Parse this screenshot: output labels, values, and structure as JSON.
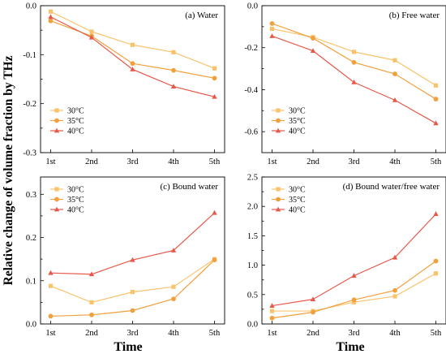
{
  "figure": {
    "ylabel": "Relative change of volume fraction by THz",
    "xlabel": "Time"
  },
  "series_colors": [
    "#f9c36b",
    "#f2a03d",
    "#e8584a"
  ],
  "series_markers": [
    "square",
    "circle",
    "triangle"
  ],
  "chart_data": [
    {
      "type": "line",
      "title": "(a) Water",
      "categories": [
        "1st",
        "2nd",
        "3rd",
        "4th",
        "5th"
      ],
      "ylim": [
        -0.3,
        0.0
      ],
      "yticks": [
        "-0.3",
        "-0.2",
        "-0.1",
        "0.0"
      ],
      "yticks_values": [
        -0.3,
        -0.2,
        -0.1,
        0.0
      ],
      "legend_position": "bottom-left",
      "series": [
        {
          "name": "30°C",
          "values": [
            -0.012,
            -0.053,
            -0.08,
            -0.095,
            -0.128
          ]
        },
        {
          "name": "35°C",
          "values": [
            -0.031,
            -0.062,
            -0.118,
            -0.132,
            -0.148
          ]
        },
        {
          "name": "40°C",
          "values": [
            -0.023,
            -0.065,
            -0.13,
            -0.165,
            -0.186
          ]
        }
      ]
    },
    {
      "type": "line",
      "title": "(b) Free water",
      "categories": [
        "1st",
        "2nd",
        "3rd",
        "4th",
        "5th"
      ],
      "ylim": [
        -0.7,
        0.0
      ],
      "yticks": [
        "-0.6",
        "-0.4",
        "-0.2",
        "0.0"
      ],
      "yticks_values": [
        -0.6,
        -0.4,
        -0.2,
        0.0
      ],
      "legend_position": "bottom-left",
      "series": [
        {
          "name": "30°C",
          "values": [
            -0.11,
            -0.15,
            -0.22,
            -0.26,
            -0.38
          ]
        },
        {
          "name": "35°C",
          "values": [
            -0.085,
            -0.155,
            -0.27,
            -0.325,
            -0.445
          ]
        },
        {
          "name": "40°C",
          "values": [
            -0.145,
            -0.215,
            -0.365,
            -0.45,
            -0.56
          ]
        }
      ]
    },
    {
      "type": "line",
      "title": "(c) Bound water",
      "categories": [
        "1st",
        "2nd",
        "3rd",
        "4th",
        "5th"
      ],
      "ylim": [
        0.0,
        0.34
      ],
      "yticks": [
        "0.0",
        "0.1",
        "0.2",
        "0.3"
      ],
      "yticks_values": [
        0.0,
        0.1,
        0.2,
        0.3
      ],
      "legend_position": "top-left",
      "series": [
        {
          "name": "30°C",
          "values": [
            0.088,
            0.05,
            0.074,
            0.086,
            0.15
          ]
        },
        {
          "name": "35°C",
          "values": [
            0.018,
            0.021,
            0.031,
            0.058,
            0.148
          ]
        },
        {
          "name": "40°C",
          "values": [
            0.118,
            0.115,
            0.148,
            0.17,
            0.257
          ]
        }
      ]
    },
    {
      "type": "line",
      "title": "(d) Bound water/free water",
      "categories": [
        "1st",
        "2nd",
        "3rd",
        "4th",
        "5th"
      ],
      "ylim": [
        0.0,
        2.5
      ],
      "yticks": [
        "0.0",
        "0.5",
        "1.0",
        "1.5",
        "2.0",
        "2.5"
      ],
      "yticks_values": [
        0.0,
        0.5,
        1.0,
        1.5,
        2.0,
        2.5
      ],
      "legend_position": "top-left",
      "series": [
        {
          "name": "30°C",
          "values": [
            0.22,
            0.22,
            0.37,
            0.47,
            0.86
          ]
        },
        {
          "name": "35°C",
          "values": [
            0.1,
            0.2,
            0.41,
            0.57,
            1.07
          ]
        },
        {
          "name": "40°C",
          "values": [
            0.31,
            0.42,
            0.82,
            1.13,
            1.87
          ]
        }
      ]
    }
  ]
}
